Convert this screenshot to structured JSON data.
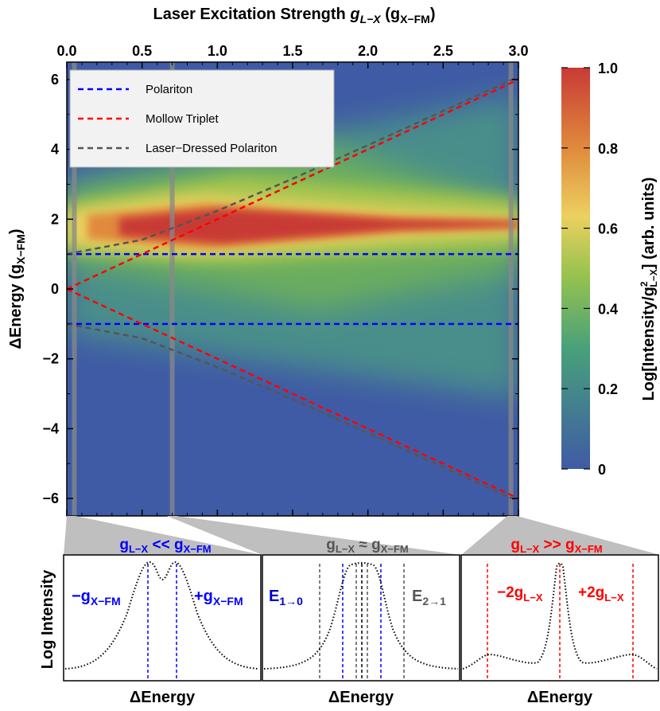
{
  "chart_data": [
    {
      "type": "heatmap",
      "title": "",
      "xlabel": "Laser Excitation Strength g_{L−X} (g_{X−FM})",
      "ylabel": "ΔEnergy (g_{X−FM})",
      "xlim": [
        0,
        3.0
      ],
      "ylim": [
        -6.5,
        6.5
      ],
      "x_ticks": [
        "0.0",
        "0.5",
        "1.0",
        "1.5",
        "2.0",
        "2.5",
        "3.0"
      ],
      "y_ticks": [
        "−6",
        "−4",
        "−2",
        "0",
        "2",
        "4",
        "6"
      ],
      "x_axis_position": "top",
      "colorbar": {
        "label": "Log[Intensity/g²_{L−X}] (arb. units)",
        "range": [
          0,
          1.0
        ],
        "ticks": [
          "0",
          "0.2",
          "0.4",
          "0.6",
          "0.8",
          "1.0"
        ],
        "colors": [
          "#3f5ba5",
          "#48a07a",
          "#96c24f",
          "#ecd060",
          "#e08a3c",
          "#c83a36"
        ]
      },
      "legend": {
        "placement": "top-left",
        "entries": [
          {
            "name": "Polariton",
            "color": "#0000ff",
            "style": "dashed"
          },
          {
            "name": "Mollow Triplet",
            "color": "#ff0000",
            "style": "dashed"
          },
          {
            "name": "Laser−Dressed Polariton",
            "color": "#555555",
            "style": "dashed"
          }
        ]
      },
      "series": [
        {
          "name": "Polariton",
          "x": [
            0,
            3.0
          ],
          "y_upper": [
            1,
            1
          ],
          "y_lower": [
            -1,
            -1
          ]
        },
        {
          "name": "Mollow Triplet",
          "x": [
            0,
            3.0
          ],
          "y_upper": [
            0,
            6
          ],
          "y_lower": [
            0,
            -6
          ]
        },
        {
          "name": "Laser−Dressed Polariton",
          "x": [
            0,
            0.5,
            1.0,
            1.5,
            2.0,
            2.5,
            3.0
          ],
          "y_upper": [
            1,
            1.41,
            2.24,
            3.16,
            4.12,
            5.1,
            6.08
          ],
          "y_lower": [
            -1,
            -1.41,
            -2.24,
            -3.16,
            -4.12,
            -5.1,
            -6.08
          ]
        }
      ],
      "cut_markers_x": [
        0.05,
        0.7,
        2.95
      ]
    },
    {
      "type": "line",
      "title": "g_{L−X} << g_{X−FM}",
      "xlabel": "ΔEnergy",
      "ylabel": "Log Intensity",
      "annotations": [
        "−g_{X−FM}",
        "+g_{X−FM}"
      ],
      "peaks_x": [
        -1,
        1
      ]
    },
    {
      "type": "line",
      "title": "g_{L−X} ≈ g_{X−FM}",
      "xlabel": "ΔEnergy",
      "ylabel": "",
      "annotations": [
        "E_{1→0}",
        "E_{2→1}"
      ]
    },
    {
      "type": "line",
      "title": "g_{L−X} >> g_{X−FM}",
      "xlabel": "ΔEnergy",
      "ylabel": "",
      "annotations": [
        "−2g_{L−X}",
        "+2g_{L−X}"
      ],
      "peaks_x": [
        -2,
        0,
        2
      ]
    }
  ],
  "text": {
    "top_label_a": "Laser Excitation Strength ",
    "top_label_g": "g",
    "top_label_sub": "L−X",
    "top_label_paren": " (g",
    "top_label_sub2": "X−FM",
    "top_label_close": ")",
    "yl_a": "ΔEnergy (g",
    "yl_sub": "X−FM",
    "yl_close": ")",
    "cb_a": "Log[Intensity/g",
    "cb_sup": "2",
    "cb_sub": "L−X",
    "cb_b": "] (arb. units)",
    "p1_title_a": "g",
    "p1_title_sub1": "L−X",
    "p1_title_mid": " << g",
    "p1_title_sub2": "X−FM",
    "p2_title_a": "g",
    "p2_title_sub1": "L−X",
    "p2_title_mid": " ≈ g",
    "p2_title_sub2": "X−FM",
    "p3_title_a": "g",
    "p3_title_sub1": "L−X",
    "p3_title_mid": " >> g",
    "p3_title_sub2": "X−FM",
    "p1_left": "−g",
    "p1_left_sub": "X−FM",
    "p1_right": "+g",
    "p1_right_sub": "X−FM",
    "p2_left": "E",
    "p2_left_sub": "1→0",
    "p2_right": "E",
    "p2_right_sub": "2→1",
    "p3_left": "−2g",
    "p3_left_sub": "L−X",
    "p3_right": "+2g",
    "p3_right_sub": "L−X",
    "bottom_ylabel": "Log Intensity",
    "bottom_xlabel": "ΔEnergy"
  }
}
